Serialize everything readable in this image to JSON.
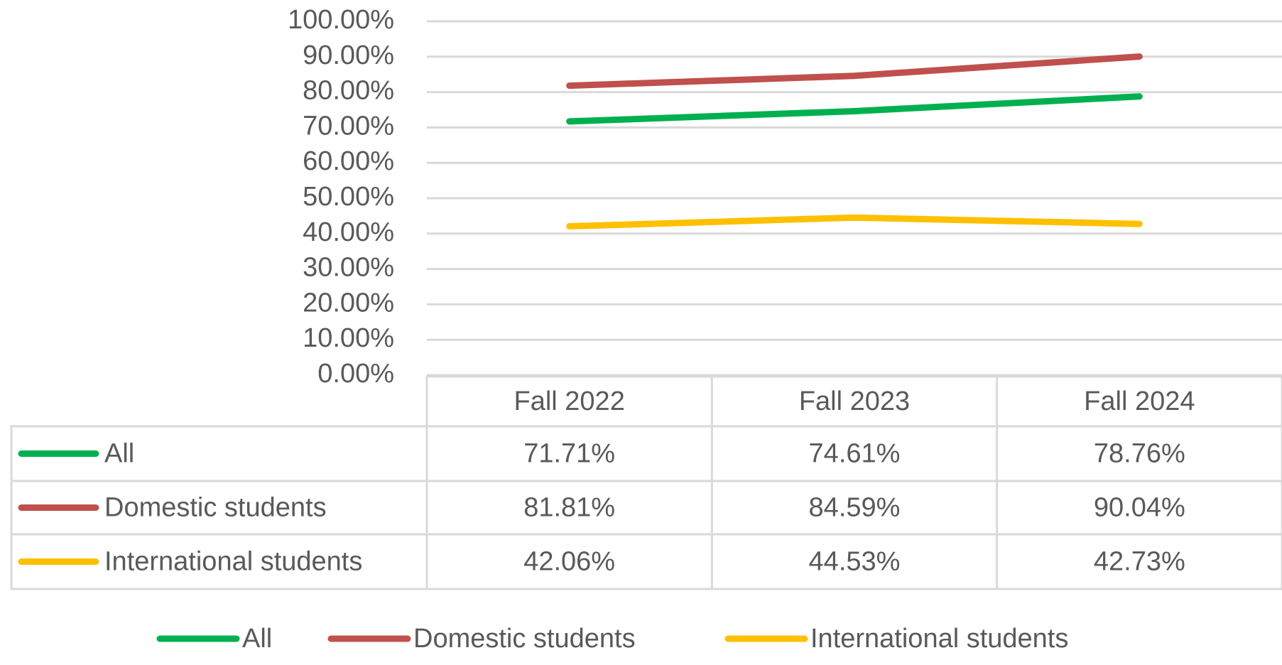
{
  "chart_data": {
    "type": "line",
    "categories": [
      "Fall 2022",
      "Fall 2023",
      "Fall 2024"
    ],
    "series": [
      {
        "name": "All",
        "color": "#00b050",
        "values": [
          71.71,
          74.61,
          78.76
        ],
        "value_labels": [
          "71.71%",
          "74.61%",
          "78.76%"
        ]
      },
      {
        "name": "Domestic students",
        "color": "#c0504d",
        "values": [
          81.81,
          84.59,
          90.04
        ],
        "value_labels": [
          "81.81%",
          "84.59%",
          "90.04%"
        ]
      },
      {
        "name": "International students",
        "color": "#ffc000",
        "values": [
          42.06,
          44.53,
          42.73
        ],
        "value_labels": [
          "42.06%",
          "44.53%",
          "42.73%"
        ]
      }
    ],
    "ylim": [
      0,
      100
    ],
    "yticks": [
      {
        "value": 0,
        "label": "0.00%"
      },
      {
        "value": 10,
        "label": "10.00%"
      },
      {
        "value": 20,
        "label": "20.00%"
      },
      {
        "value": 30,
        "label": "30.00%"
      },
      {
        "value": 40,
        "label": "40.00%"
      },
      {
        "value": 50,
        "label": "50.00%"
      },
      {
        "value": 60,
        "label": "60.00%"
      },
      {
        "value": 70,
        "label": "70.00%"
      },
      {
        "value": 80,
        "label": "80.00%"
      },
      {
        "value": 90,
        "label": "90.00%"
      },
      {
        "value": 100,
        "label": "100.00%"
      }
    ],
    "grid": true,
    "legend": "bottom",
    "data_table": true
  }
}
